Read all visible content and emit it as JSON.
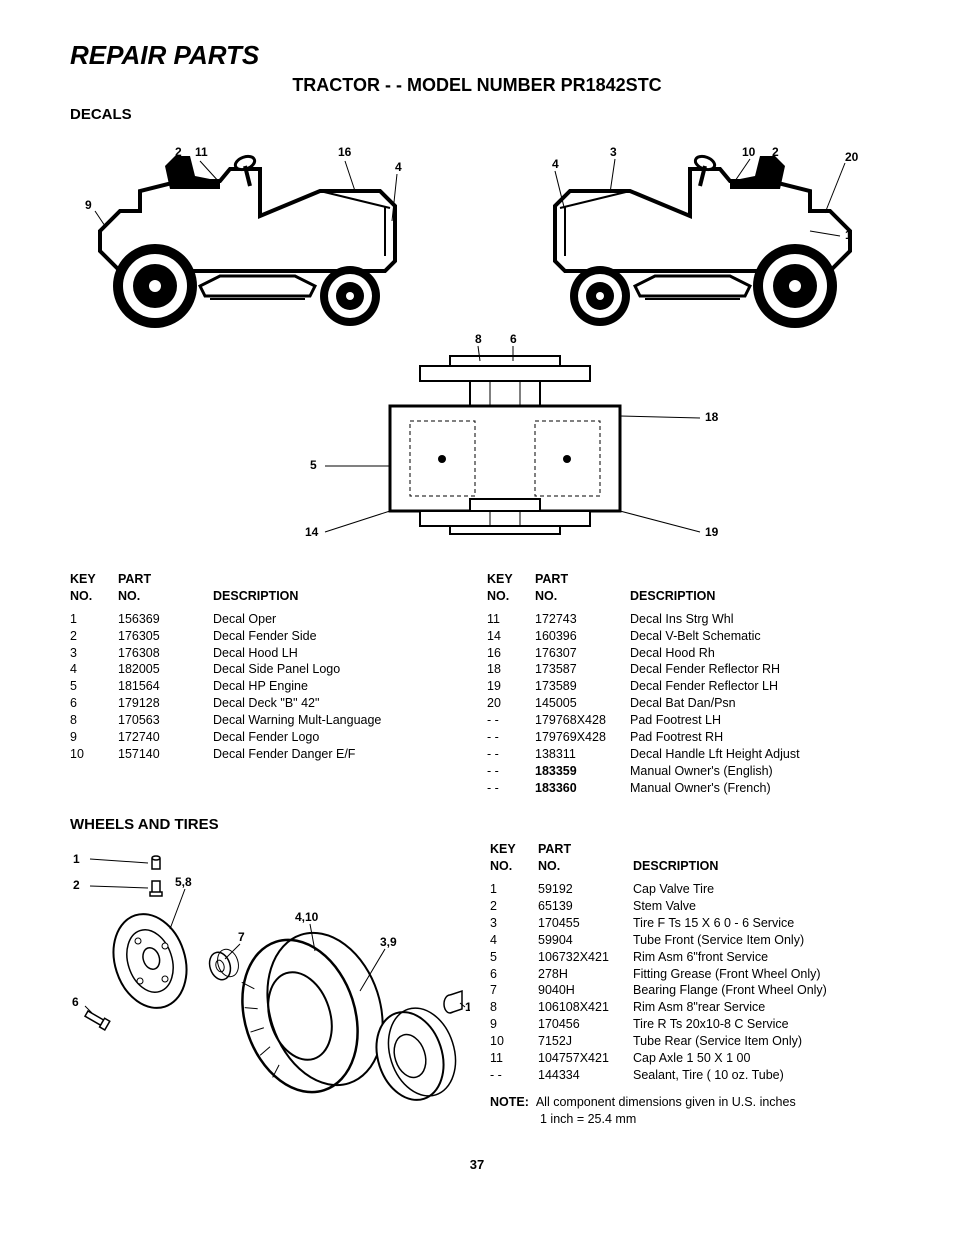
{
  "title": "REPAIR PARTS",
  "subtitle": "TRACTOR - - MODEL NUMBER PR1842STC",
  "section_decals": "DECALS",
  "section_wheels": "WHEELS AND TIRES",
  "headers": {
    "key": "KEY",
    "no": "NO.",
    "part": "PART",
    "desc": "DESCRIPTION"
  },
  "decals_left": [
    {
      "key": "1",
      "part": "156369",
      "desc": "Decal Oper",
      "bold": false
    },
    {
      "key": "2",
      "part": "176305",
      "desc": "Decal Fender Side",
      "bold": false
    },
    {
      "key": "3",
      "part": "176308",
      "desc": "Decal Hood LH",
      "bold": false
    },
    {
      "key": "4",
      "part": "182005",
      "desc": "Decal Side Panel Logo",
      "bold": false
    },
    {
      "key": "5",
      "part": "181564",
      "desc": "Decal HP Engine",
      "bold": false
    },
    {
      "key": "6",
      "part": "179128",
      "desc": "Decal Deck \"B\" 42\"",
      "bold": false
    },
    {
      "key": "8",
      "part": "170563",
      "desc": "Decal Warning Mult-Language",
      "bold": false
    },
    {
      "key": "9",
      "part": "172740",
      "desc": "Decal Fender Logo",
      "bold": false
    },
    {
      "key": "10",
      "part": "157140",
      "desc": "Decal Fender Danger E/F",
      "bold": false
    }
  ],
  "decals_right": [
    {
      "key": "11",
      "part": "172743",
      "desc": "Decal Ins Strg Whl",
      "bold": false
    },
    {
      "key": "14",
      "part": "160396",
      "desc": "Decal V-Belt  Schematic",
      "bold": false
    },
    {
      "key": "16",
      "part": "176307",
      "desc": "Decal Hood Rh",
      "bold": false
    },
    {
      "key": "18",
      "part": "173587",
      "desc": "Decal Fender Reflector RH",
      "bold": false
    },
    {
      "key": "19",
      "part": "173589",
      "desc": "Decal Fender Reflector LH",
      "bold": false
    },
    {
      "key": "20",
      "part": "145005",
      "desc": "Decal Bat Dan/Psn",
      "bold": false
    },
    {
      "key": "- -",
      "part": "179768X428",
      "desc": "Pad Footrest LH",
      "bold": false
    },
    {
      "key": "- -",
      "part": "179769X428",
      "desc": "Pad Footrest RH",
      "bold": false
    },
    {
      "key": "- -",
      "part": "138311",
      "desc": "Decal Handle Lft Height Adjust",
      "bold": false
    },
    {
      "key": "- -",
      "part": "183359",
      "desc": "Manual Owner's (English)",
      "bold": true
    },
    {
      "key": "- -",
      "part": "183360",
      "desc": "Manual Owner's (French)",
      "bold": true
    }
  ],
  "wheels_rows": [
    {
      "key": "1",
      "part": "59192",
      "desc": "Cap Valve Tire"
    },
    {
      "key": "2",
      "part": "65139",
      "desc": "Stem Valve"
    },
    {
      "key": "3",
      "part": "170455",
      "desc": "Tire F Ts 15 X 6 0 - 6 Service"
    },
    {
      "key": "4",
      "part": "59904",
      "desc": "Tube Front (Service Item Only)"
    },
    {
      "key": "5",
      "part": "106732X421",
      "desc": "Rim Asm 6\"front Service"
    },
    {
      "key": "6",
      "part": "278H",
      "desc": "Fitting Grease (Front Wheel Only)"
    },
    {
      "key": "7",
      "part": "9040H",
      "desc": "Bearing Flange (Front Wheel Only)"
    },
    {
      "key": "8",
      "part": "106108X421",
      "desc": "Rim Asm 8\"rear Service"
    },
    {
      "key": "9",
      "part": "170456",
      "desc": "Tire R Ts 20x10-8 C Service"
    },
    {
      "key": "10",
      "part": "7152J",
      "desc": "Tube Rear (Service Item Only)"
    },
    {
      "key": "11",
      "part": "104757X421",
      "desc": "Cap Axle 1 50 X 1 00"
    },
    {
      "key": "- -",
      "part": "144334",
      "desc": "Sealant, Tire ( 10 oz. Tube)"
    }
  ],
  "note_label": "NOTE:",
  "note_text": "All component dimensions given in U.S. inches",
  "note_conv": "1 inch = 25.4 mm",
  "page_number": "37",
  "diagram_labels": {
    "left_tractor": [
      "2",
      "11",
      "16",
      "4",
      "9"
    ],
    "right_tractor": [
      "4",
      "3",
      "10",
      "2",
      "20",
      "1"
    ],
    "middle": [
      "8",
      "6"
    ],
    "bottom": [
      "5",
      "14",
      "18",
      "19"
    ]
  },
  "wheels_labels": [
    "1",
    "2",
    "5,8",
    "4,10",
    "7",
    "3,9",
    "6",
    "11"
  ],
  "colors": {
    "text": "#000000",
    "bg": "#ffffff",
    "line": "#000000"
  }
}
